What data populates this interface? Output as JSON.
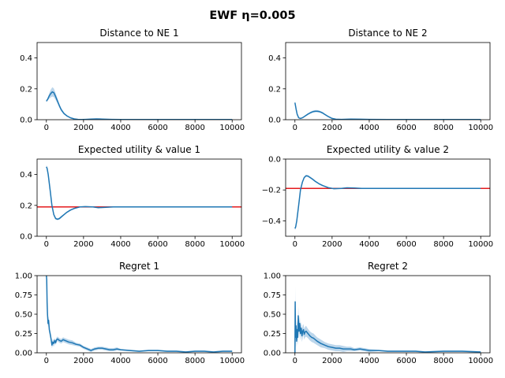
{
  "suptitle": "EWF η=0.005",
  "colors": {
    "series": "#1f77b4",
    "band": "#a6c8e4",
    "reference": "#e41a1c",
    "axis": "#000000"
  },
  "chart_data": [
    {
      "type": "line",
      "title": "Distance to NE 1",
      "xlim": [
        -500,
        10500
      ],
      "ylim": [
        0,
        0.5
      ],
      "xticks": [
        0,
        2000,
        4000,
        6000,
        8000,
        10000
      ],
      "yticks": [
        0.0,
        0.2,
        0.4
      ],
      "ytick_labels": [
        "0.0",
        "0.2",
        "0.4"
      ],
      "x": [
        0,
        80,
        160,
        240,
        320,
        400,
        500,
        600,
        700,
        800,
        950,
        1100,
        1300,
        1500,
        1700,
        1900,
        2100,
        2400,
        2700,
        3000,
        3500,
        4000,
        5000,
        6000,
        8000,
        10000
      ],
      "y": [
        0.12,
        0.135,
        0.155,
        0.17,
        0.18,
        0.175,
        0.15,
        0.12,
        0.09,
        0.065,
        0.04,
        0.025,
        0.012,
        0.005,
        0.002,
        0.001,
        0.002,
        0.004,
        0.005,
        0.004,
        0.002,
        0.001,
        0.001,
        0.001,
        0.001,
        0.001
      ],
      "band": [
        0.005,
        0.01,
        0.018,
        0.025,
        0.03,
        0.028,
        0.022,
        0.016,
        0.012,
        0.01,
        0.007,
        0.005,
        0.004,
        0.003,
        0.002,
        0.002,
        0.002,
        0.002,
        0.002,
        0.002,
        0.001,
        0.001,
        0.001,
        0.001,
        0.001,
        0.001
      ]
    },
    {
      "type": "line",
      "title": "Distance to NE 2",
      "xlim": [
        -500,
        10500
      ],
      "ylim": [
        0,
        0.5
      ],
      "xticks": [
        0,
        2000,
        4000,
        6000,
        8000,
        10000
      ],
      "yticks": [
        0.0,
        0.2,
        0.4
      ],
      "ytick_labels": [
        "0.0",
        "0.2",
        "0.4"
      ],
      "x": [
        0,
        60,
        120,
        200,
        300,
        400,
        500,
        600,
        700,
        800,
        900,
        1000,
        1100,
        1200,
        1300,
        1400,
        1500,
        1600,
        1800,
        2000,
        2200,
        2500,
        3000,
        3500,
        4000,
        5000,
        6000,
        8000,
        10000
      ],
      "y": [
        0.11,
        0.07,
        0.035,
        0.012,
        0.008,
        0.012,
        0.02,
        0.028,
        0.036,
        0.043,
        0.049,
        0.053,
        0.055,
        0.055,
        0.053,
        0.049,
        0.043,
        0.035,
        0.02,
        0.008,
        0.003,
        0.002,
        0.004,
        0.003,
        0.002,
        0.001,
        0.001,
        0.001,
        0.001
      ],
      "band": [
        0.01,
        0.008,
        0.006,
        0.004,
        0.003,
        0.003,
        0.004,
        0.005,
        0.006,
        0.006,
        0.007,
        0.007,
        0.007,
        0.007,
        0.007,
        0.006,
        0.006,
        0.005,
        0.004,
        0.003,
        0.002,
        0.002,
        0.002,
        0.002,
        0.001,
        0.001,
        0.001,
        0.001,
        0.001
      ]
    },
    {
      "type": "line",
      "title": "Expected utility & value 1",
      "xlim": [
        -500,
        10500
      ],
      "ylim": [
        0,
        0.5
      ],
      "xticks": [
        0,
        2000,
        4000,
        6000,
        8000,
        10000
      ],
      "yticks": [
        0.0,
        0.2,
        0.4
      ],
      "ytick_labels": [
        "0.0",
        "0.2",
        "0.4"
      ],
      "reference_line": 0.19,
      "x": [
        0,
        40,
        100,
        200,
        300,
        400,
        500,
        600,
        700,
        800,
        950,
        1100,
        1300,
        1500,
        1800,
        2100,
        2500,
        2800,
        3200,
        3600,
        4000,
        5000,
        6000,
        8000,
        10000
      ],
      "y": [
        0.45,
        0.44,
        0.4,
        0.3,
        0.2,
        0.14,
        0.115,
        0.11,
        0.115,
        0.125,
        0.14,
        0.155,
        0.17,
        0.18,
        0.19,
        0.192,
        0.19,
        0.185,
        0.187,
        0.19,
        0.19,
        0.19,
        0.19,
        0.19,
        0.19
      ],
      "band": [
        0.01,
        0.012,
        0.012,
        0.01,
        0.008,
        0.007,
        0.006,
        0.006,
        0.006,
        0.006,
        0.005,
        0.005,
        0.004,
        0.004,
        0.003,
        0.003,
        0.003,
        0.003,
        0.002,
        0.002,
        0.002,
        0.002,
        0.002,
        0.002,
        0.002
      ]
    },
    {
      "type": "line",
      "title": "Expected utility & value 2",
      "xlim": [
        -500,
        10500
      ],
      "ylim": [
        -0.5,
        0.0
      ],
      "xticks": [
        0,
        2000,
        4000,
        6000,
        8000,
        10000
      ],
      "yticks": [
        -0.4,
        -0.2,
        0.0
      ],
      "ytick_labels": [
        "−0.4",
        "−0.2",
        "0.0"
      ],
      "reference_line": -0.19,
      "x": [
        0,
        40,
        100,
        200,
        300,
        400,
        500,
        600,
        700,
        800,
        950,
        1100,
        1300,
        1500,
        1800,
        2100,
        2500,
        2800,
        3200,
        3600,
        4000,
        5000,
        6000,
        8000,
        10000
      ],
      "y": [
        -0.45,
        -0.44,
        -0.4,
        -0.3,
        -0.2,
        -0.15,
        -0.12,
        -0.108,
        -0.11,
        -0.118,
        -0.13,
        -0.145,
        -0.16,
        -0.172,
        -0.185,
        -0.192,
        -0.19,
        -0.186,
        -0.187,
        -0.19,
        -0.19,
        -0.19,
        -0.19,
        -0.19,
        -0.19
      ],
      "band": [
        0.01,
        0.012,
        0.012,
        0.01,
        0.008,
        0.007,
        0.006,
        0.006,
        0.006,
        0.006,
        0.005,
        0.005,
        0.004,
        0.004,
        0.003,
        0.003,
        0.003,
        0.003,
        0.002,
        0.002,
        0.002,
        0.002,
        0.002,
        0.002,
        0.002
      ]
    },
    {
      "type": "line",
      "title": "Regret 1",
      "xlim": [
        -500,
        10500
      ],
      "ylim": [
        0,
        1.0
      ],
      "xticks": [
        0,
        2000,
        4000,
        6000,
        8000,
        10000
      ],
      "yticks": [
        0.0,
        0.25,
        0.5,
        0.75,
        1.0
      ],
      "ytick_labels": [
        "0.00",
        "0.25",
        "0.50",
        "0.75",
        "1.00"
      ],
      "x": [
        0,
        20,
        40,
        60,
        90,
        120,
        160,
        200,
        250,
        300,
        350,
        400,
        450,
        500,
        550,
        600,
        700,
        800,
        900,
        1000,
        1200,
        1400,
        1600,
        1800,
        2000,
        2200,
        2400,
        2600,
        2800,
        3000,
        3200,
        3400,
        3600,
        3800,
        4000,
        4500,
        5000,
        5500,
        6000,
        6500,
        7000,
        7500,
        8000,
        8500,
        9000,
        9500,
        10000
      ],
      "y": [
        1.0,
        0.95,
        0.65,
        0.5,
        0.38,
        0.42,
        0.3,
        0.25,
        0.18,
        0.1,
        0.14,
        0.12,
        0.16,
        0.13,
        0.17,
        0.18,
        0.16,
        0.15,
        0.17,
        0.16,
        0.14,
        0.13,
        0.11,
        0.1,
        0.07,
        0.05,
        0.03,
        0.05,
        0.06,
        0.06,
        0.05,
        0.04,
        0.04,
        0.05,
        0.04,
        0.03,
        0.02,
        0.03,
        0.03,
        0.02,
        0.02,
        0.01,
        0.02,
        0.02,
        0.01,
        0.02,
        0.02
      ],
      "band": [
        0.05,
        0.05,
        0.06,
        0.06,
        0.05,
        0.05,
        0.05,
        0.04,
        0.04,
        0.04,
        0.04,
        0.04,
        0.03,
        0.03,
        0.03,
        0.03,
        0.03,
        0.03,
        0.03,
        0.03,
        0.03,
        0.03,
        0.02,
        0.02,
        0.02,
        0.02,
        0.02,
        0.02,
        0.02,
        0.02,
        0.02,
        0.02,
        0.02,
        0.02,
        0.01,
        0.01,
        0.01,
        0.01,
        0.01,
        0.01,
        0.01,
        0.01,
        0.01,
        0.01,
        0.01,
        0.01,
        0.01
      ]
    },
    {
      "type": "line",
      "title": "Regret 2",
      "xlim": [
        -500,
        10500
      ],
      "ylim": [
        0,
        1.0
      ],
      "xticks": [
        0,
        2000,
        4000,
        6000,
        8000,
        10000
      ],
      "yticks": [
        0.0,
        0.25,
        0.5,
        0.75,
        1.0
      ],
      "ytick_labels": [
        "0.00",
        "0.25",
        "0.50",
        "0.75",
        "1.00"
      ],
      "x": [
        0,
        15,
        30,
        60,
        90,
        120,
        150,
        180,
        220,
        260,
        300,
        340,
        380,
        420,
        460,
        500,
        550,
        600,
        700,
        800,
        900,
        1000,
        1200,
        1400,
        1600,
        1800,
        2000,
        2200,
        2400,
        2600,
        2800,
        3000,
        3200,
        3500,
        4000,
        4500,
        5000,
        5500,
        6000,
        6500,
        7000,
        8000,
        9000,
        10000
      ],
      "y": [
        0.0,
        0.66,
        0.2,
        0.35,
        0.15,
        0.3,
        0.2,
        0.48,
        0.28,
        0.38,
        0.25,
        0.32,
        0.22,
        0.28,
        0.3,
        0.24,
        0.27,
        0.28,
        0.25,
        0.22,
        0.2,
        0.19,
        0.15,
        0.12,
        0.1,
        0.08,
        0.07,
        0.06,
        0.06,
        0.05,
        0.05,
        0.05,
        0.04,
        0.05,
        0.03,
        0.03,
        0.02,
        0.02,
        0.02,
        0.02,
        0.01,
        0.02,
        0.02,
        0.01
      ],
      "band": [
        0.1,
        0.2,
        0.15,
        0.1,
        0.08,
        0.12,
        0.1,
        0.12,
        0.1,
        0.1,
        0.09,
        0.08,
        0.08,
        0.08,
        0.07,
        0.07,
        0.07,
        0.07,
        0.06,
        0.06,
        0.06,
        0.06,
        0.05,
        0.05,
        0.04,
        0.04,
        0.04,
        0.04,
        0.04,
        0.04,
        0.03,
        0.03,
        0.02,
        0.02,
        0.02,
        0.01,
        0.01,
        0.01,
        0.01,
        0.01,
        0.01,
        0.01,
        0.01,
        0.01
      ]
    }
  ]
}
